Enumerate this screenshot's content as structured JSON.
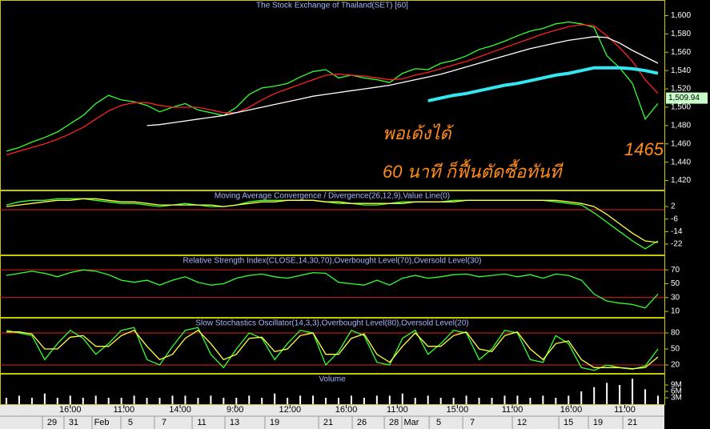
{
  "chart_data": [
    {
      "type": "line",
      "title": "The Stock Exchange of Thailand(SET) [60]",
      "ylim": [
        1410,
        1617
      ],
      "yticks": [
        {
          "value": 1600,
          "label": "1,600"
        },
        {
          "value": 1580,
          "label": "1,580"
        },
        {
          "value": 1560,
          "label": "1,560"
        },
        {
          "value": 1540,
          "label": "1,540"
        },
        {
          "value": 1520,
          "label": "1,520"
        },
        {
          "value": 1500,
          "label": "1,500"
        },
        {
          "value": 1480,
          "label": "1,480"
        },
        {
          "value": 1460,
          "label": "1,460"
        },
        {
          "value": 1440,
          "label": "1,440"
        },
        {
          "value": 1420,
          "label": "1,420"
        }
      ],
      "series": [
        {
          "color": "#33ff33",
          "values": [
            1452,
            1456,
            1462,
            1467,
            1473,
            1482,
            1491,
            1504,
            1513,
            1508,
            1506,
            1502,
            1495,
            1500,
            1504,
            1497,
            1494,
            1491,
            1500,
            1514,
            1521,
            1523,
            1526,
            1533,
            1539,
            1541,
            1532,
            1535,
            1532,
            1530,
            1527,
            1537,
            1542,
            1541,
            1548,
            1551,
            1556,
            1563,
            1567,
            1572,
            1578,
            1583,
            1586,
            1591,
            1593,
            1591,
            1587,
            1556,
            1543,
            1526,
            1487,
            1504
          ]
        },
        {
          "color": "#ff2020",
          "values": [
            1448,
            1452,
            1456,
            1460,
            1465,
            1471,
            1478,
            1487,
            1496,
            1502,
            1505,
            1505,
            1502,
            1500,
            1500,
            1500,
            1497,
            1494,
            1494,
            1500,
            1508,
            1515,
            1520,
            1525,
            1530,
            1535,
            1536,
            1535,
            1534,
            1532,
            1530,
            1531,
            1535,
            1538,
            1542,
            1546,
            1550,
            1555,
            1560,
            1565,
            1570,
            1575,
            1580,
            1584,
            1588,
            1590,
            1589,
            1578,
            1565,
            1550,
            1530,
            1515
          ]
        },
        {
          "color": "#ffffff",
          "values": [
            null,
            null,
            null,
            null,
            null,
            null,
            null,
            null,
            null,
            null,
            null,
            1480,
            1481,
            1483,
            1485,
            1487,
            1489,
            1491,
            1494,
            1497,
            1500,
            1503,
            1506,
            1509,
            1512,
            1514,
            1516,
            1518,
            1520,
            1522,
            1524,
            1527,
            1530,
            1533,
            1536,
            1540,
            1544,
            1548,
            1552,
            1556,
            1560,
            1564,
            1567,
            1570,
            1573,
            1575,
            1577,
            1576,
            1570,
            1562,
            1555,
            1548
          ]
        },
        {
          "color": "#33e6f0",
          "values": [
            null,
            null,
            null,
            null,
            null,
            null,
            null,
            null,
            null,
            null,
            null,
            null,
            null,
            null,
            null,
            null,
            null,
            null,
            null,
            null,
            null,
            null,
            null,
            null,
            null,
            null,
            null,
            null,
            null,
            null,
            null,
            null,
            null,
            1507,
            1510,
            1513,
            1515,
            1518,
            1521,
            1524,
            1526,
            1529,
            1532,
            1535,
            1537,
            1540,
            1543,
            1543,
            1543,
            1542,
            1540,
            1537
          ]
        }
      ],
      "last_price": {
        "value": 1509.94,
        "label": "1,509.94"
      },
      "annotations": [
        "พอเด้งได้",
        "60 นาที ก็ฟื้นตัดซื้อทันที",
        "1465"
      ]
    },
    {
      "type": "line",
      "title": "Moving Average Convergence / Divergence(26,12,9),Value Line(0)",
      "ylim": [
        -28.7,
        12.3
      ],
      "yticks": [
        2,
        -6,
        -14,
        -22
      ],
      "levels": [
        0
      ],
      "series": [
        {
          "color": "#33ff33",
          "values": [
            3,
            5,
            6,
            6,
            7,
            7,
            7,
            6,
            5,
            4,
            4,
            3,
            2,
            3,
            4,
            3,
            2,
            2,
            3,
            5,
            6,
            6,
            6,
            6,
            6,
            5,
            4,
            4,
            3,
            3,
            4,
            5,
            5,
            5,
            5,
            6,
            6,
            6,
            6,
            6,
            6,
            6,
            6,
            5,
            4,
            3,
            -2,
            -8,
            -14,
            -20,
            -25,
            -20
          ]
        },
        {
          "color": "#ffff40",
          "values": [
            2,
            3,
            4,
            5,
            6,
            6,
            7,
            7,
            6,
            5,
            5,
            4,
            3,
            3,
            3,
            3,
            3,
            2,
            3,
            4,
            5,
            5,
            6,
            6,
            6,
            5,
            5,
            4,
            4,
            4,
            4,
            4,
            5,
            5,
            5,
            5,
            6,
            6,
            6,
            6,
            6,
            6,
            6,
            6,
            5,
            4,
            2,
            -3,
            -9,
            -15,
            -20,
            -21
          ]
        }
      ]
    },
    {
      "type": "line",
      "title": "Relative Strength Index(CLOSE,14,30,70),Overbought Level(70),Oversold Level(30)",
      "ylim": [
        2,
        91
      ],
      "yticks": [
        70,
        50,
        30,
        10
      ],
      "levels": [
        70,
        30
      ],
      "series": [
        {
          "color": "#33ff33",
          "values": [
            62,
            65,
            68,
            65,
            60,
            66,
            70,
            68,
            63,
            55,
            52,
            55,
            48,
            55,
            60,
            52,
            48,
            50,
            58,
            62,
            64,
            60,
            58,
            62,
            66,
            65,
            52,
            50,
            48,
            55,
            48,
            58,
            62,
            58,
            60,
            63,
            64,
            60,
            62,
            64,
            60,
            63,
            58,
            64,
            62,
            55,
            35,
            25,
            22,
            20,
            15,
            35
          ]
        }
      ]
    },
    {
      "type": "line",
      "title": "Slow Stochastics Oscillator(14,3,3),Overbought Level(80),Oversold Level(20)",
      "ylim": [
        5,
        108.5
      ],
      "yticks": [
        80,
        50,
        20
      ],
      "levels": [
        80,
        20
      ],
      "series": [
        {
          "color": "#33ff33",
          "values": [
            85,
            80,
            75,
            30,
            60,
            85,
            70,
            40,
            60,
            85,
            90,
            30,
            20,
            55,
            85,
            90,
            40,
            15,
            50,
            80,
            70,
            30,
            60,
            85,
            80,
            20,
            45,
            85,
            75,
            25,
            20,
            70,
            85,
            40,
            60,
            85,
            80,
            30,
            50,
            85,
            80,
            30,
            25,
            75,
            60,
            15,
            10,
            20,
            15,
            12,
            18,
            50
          ]
        },
        {
          "color": "#ffff40",
          "values": [
            82,
            82,
            78,
            50,
            50,
            72,
            75,
            55,
            55,
            75,
            85,
            55,
            30,
            40,
            70,
            85,
            60,
            30,
            40,
            70,
            72,
            45,
            50,
            75,
            80,
            40,
            40,
            70,
            78,
            40,
            25,
            55,
            80,
            55,
            55,
            75,
            82,
            50,
            45,
            75,
            82,
            50,
            30,
            60,
            65,
            30,
            15,
            15,
            15,
            13,
            15,
            35
          ]
        }
      ]
    },
    {
      "type": "bar",
      "title": "Volume",
      "color": "#ffffff",
      "ylim": [
        0,
        14.25
      ],
      "yticks": [
        {
          "value": 9,
          "label": "9M"
        },
        {
          "value": 6,
          "label": "6M"
        },
        {
          "value": 3,
          "label": "3M"
        }
      ],
      "values": [
        3,
        4,
        3,
        5,
        3,
        4,
        3,
        4,
        3,
        3,
        4,
        3,
        3,
        4,
        4,
        3,
        4,
        3,
        3,
        4,
        3,
        5,
        3,
        4,
        4,
        3,
        3,
        4,
        3,
        4,
        4,
        5,
        3,
        4,
        3,
        3,
        4,
        3,
        3,
        4,
        4,
        3,
        4,
        3,
        4,
        6,
        8,
        10,
        9,
        12,
        7,
        4
      ],
      "xlim": [
        -0.5,
        51.5
      ],
      "xticks": [
        {
          "value": 5.0,
          "label": "16:00"
        },
        {
          "value": 9.2,
          "label": "11:00"
        },
        {
          "value": 13.6,
          "label": "14:00"
        },
        {
          "value": 17.9,
          "label": "9:00"
        },
        {
          "value": 22.2,
          "label": "12:00"
        },
        {
          "value": 26.6,
          "label": "16:00"
        },
        {
          "value": 30.6,
          "label": "11:00"
        },
        {
          "value": 35.3,
          "label": "15:00"
        },
        {
          "value": 39.6,
          "label": "11:00"
        },
        {
          "value": 44.2,
          "label": "16:00"
        },
        {
          "value": 48.4,
          "label": "11:00"
        }
      ],
      "date_ticks": [
        {
          "value": 3.57,
          "label": "29"
        },
        {
          "value": 5.26,
          "label": "31"
        },
        {
          "value": 7.46,
          "label": "Feb"
        },
        {
          "value": 9.71,
          "label": "5"
        },
        {
          "value": 12.34,
          "label": "7"
        },
        {
          "value": 15.29,
          "label": "11"
        },
        {
          "value": 17.86,
          "label": "13"
        },
        {
          "value": 20.99,
          "label": "19"
        },
        {
          "value": 25.19,
          "label": "21"
        },
        {
          "value": 27.82,
          "label": "26"
        },
        {
          "value": 30.33,
          "label": "28"
        },
        {
          "value": 31.7,
          "label": "Mar"
        },
        {
          "value": 33.84,
          "label": "5"
        },
        {
          "value": 36.47,
          "label": "7"
        },
        {
          "value": 40.35,
          "label": "12"
        },
        {
          "value": 43.99,
          "label": "15"
        },
        {
          "value": 46.3,
          "label": "19"
        },
        {
          "value": 49.0,
          "label": "21"
        }
      ]
    }
  ]
}
